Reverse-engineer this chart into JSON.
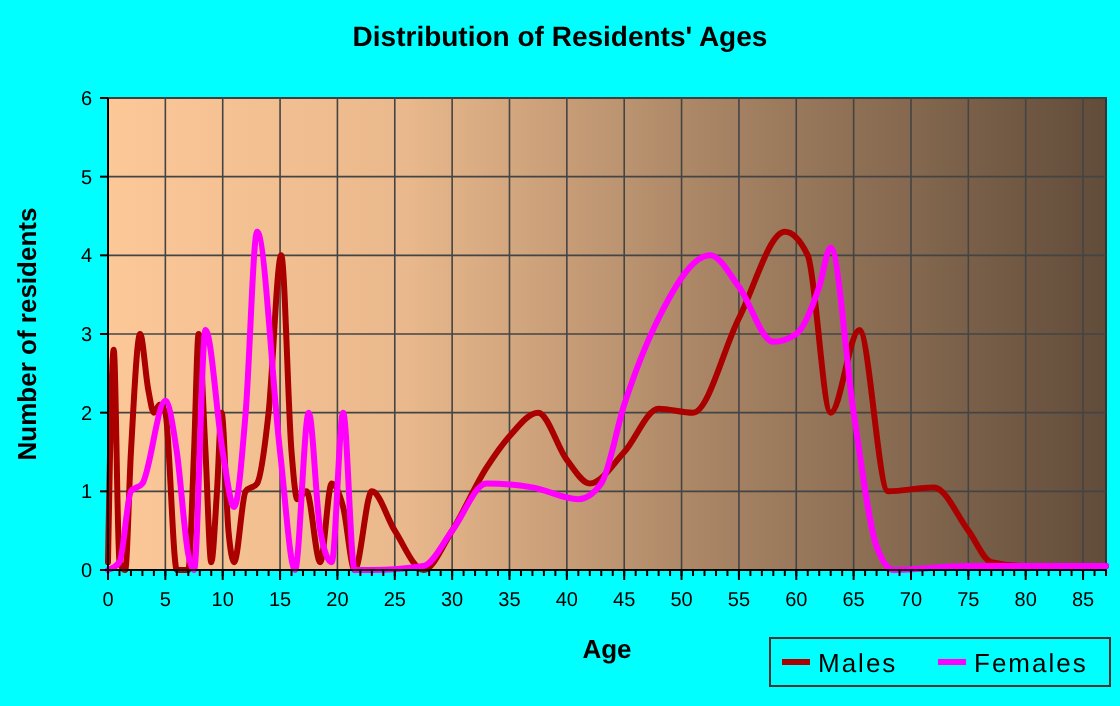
{
  "chart_data": {
    "type": "line",
    "title": "Distribution of Residents' Ages",
    "xlabel": "Age",
    "ylabel": "Number of residents",
    "xlim": [
      0,
      87
    ],
    "xticks": [
      0,
      5,
      10,
      15,
      20,
      25,
      30,
      35,
      40,
      45,
      50,
      55,
      60,
      65,
      70,
      75,
      80,
      85
    ],
    "ylim": [
      0,
      6
    ],
    "yticks": [
      0,
      1,
      2,
      3,
      4,
      5,
      6
    ],
    "grid": true,
    "legend": "bottom right",
    "marker": "none",
    "line_style": "solid",
    "series": [
      {
        "name": "Males",
        "color": "#aa0000",
        "x": [
          0,
          0.5,
          1,
          1.5,
          2,
          2.8,
          3.5,
          4,
          4.5,
          5,
          6,
          7,
          7.5,
          7.9,
          8.5,
          9,
          9.5,
          9.9,
          10.5,
          11,
          12,
          13,
          14,
          15.1,
          16,
          16.5,
          17.3,
          18.5,
          19.5,
          20.5,
          21.5,
          23,
          25,
          27.5,
          30,
          33,
          35,
          37.5,
          40,
          42,
          45,
          48,
          51,
          55,
          59,
          61,
          63,
          65.5,
          68,
          72,
          75,
          77,
          80,
          87
        ],
        "values": [
          0.1,
          2.8,
          0.1,
          0,
          1.5,
          3,
          2.3,
          2,
          2.1,
          2,
          0,
          0,
          1.5,
          3,
          1.5,
          0.1,
          1,
          2,
          0.5,
          0.1,
          1,
          1.1,
          2,
          4,
          1.5,
          0.9,
          1,
          0.1,
          1.1,
          0.8,
          0,
          1,
          0.5,
          0,
          0.5,
          1.3,
          1.7,
          2,
          1.4,
          1.1,
          1.5,
          2.05,
          2,
          3.2,
          4.3,
          4,
          2,
          3.05,
          1,
          1.05,
          0.5,
          0.1,
          0.05,
          0.05
        ]
      },
      {
        "name": "Females",
        "color": "#ff00ff",
        "x": [
          0,
          1,
          2,
          3,
          5,
          6,
          7,
          7.5,
          8.5,
          10,
          11,
          12,
          13,
          15,
          16.3,
          17.5,
          18.5,
          19.5,
          20.5,
          21.5,
          23,
          27.5,
          30,
          33,
          37,
          41,
          43,
          45,
          48,
          52.5,
          55,
          58,
          60,
          62,
          63,
          65,
          67,
          68.5,
          75,
          87
        ],
        "values": [
          0,
          0.1,
          1,
          1.1,
          2.15,
          1.5,
          0.2,
          0,
          3.05,
          1.5,
          0.8,
          2,
          4.3,
          1.5,
          0,
          2,
          0.5,
          0.1,
          2,
          0,
          0,
          0.05,
          0.5,
          1.1,
          1.05,
          0.9,
          1.1,
          2.1,
          3.2,
          4,
          3.6,
          2.9,
          3,
          3.6,
          4.1,
          2,
          0.3,
          0,
          0.05,
          0.05
        ]
      }
    ]
  }
}
